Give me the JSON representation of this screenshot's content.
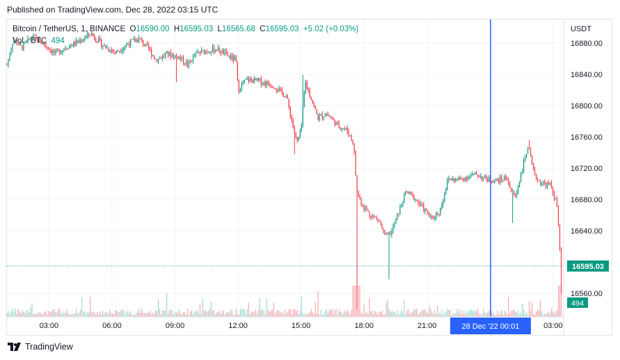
{
  "header": {
    "published": "Published on TradingView.com, Dec 28, 2022 03:15 UTC"
  },
  "legend": {
    "symbol": "Bitcoin / TetherUS, 1, BINANCE",
    "open_label": "O",
    "open": "16590.00",
    "high_label": "H",
    "high": "16595.03",
    "low_label": "L",
    "low": "16565.68",
    "close_label": "C",
    "close": "16595.03",
    "change": "+5.02 (+0.03%)",
    "vol_label": "Vol · BTC",
    "vol_value": "494"
  },
  "footer": {
    "brand": "TradingView",
    "logo_icon": "tradingview-logo-icon"
  },
  "colors": {
    "up": "#089981",
    "down": "#f23645",
    "vol_up": "#9fd8cf",
    "vol_down": "#f7a7ae",
    "crosshair": "#2962ff",
    "price_label": "#089981",
    "grid": "#f0f3fa"
  },
  "chart_data": {
    "type": "candlestick",
    "currency": "USDT",
    "y_ticks": [
      "16880.00",
      "16840.00",
      "16800.00",
      "16760.00",
      "16720.00",
      "16680.00",
      "16640.00",
      "16560.00"
    ],
    "y_tick_values": [
      16880,
      16840,
      16800,
      16760,
      16720,
      16680,
      16640,
      16560
    ],
    "x_ticks": [
      "03:00",
      "06:00",
      "09:00",
      "12:00",
      "15:00",
      "18:00",
      "21:00",
      "03:00"
    ],
    "x_tick_hours": [
      3,
      6,
      9,
      12,
      15,
      18,
      21,
      27
    ],
    "ylim": [
      16530,
      16910
    ],
    "xlim_hours": [
      1.0,
      27.5
    ],
    "last_price": "16595.03",
    "last_price_value": 16595.03,
    "last_volume": "494",
    "crosshair_label": "28 Dec '22   00:01",
    "crosshair_hour": 24.02,
    "price_path": [
      [
        1.0,
        16852
      ],
      [
        1.3,
        16885
      ],
      [
        1.7,
        16874
      ],
      [
        2.2,
        16888
      ],
      [
        2.8,
        16878
      ],
      [
        3.3,
        16866
      ],
      [
        3.8,
        16875
      ],
      [
        4.3,
        16880
      ],
      [
        5.0,
        16892
      ],
      [
        5.6,
        16876
      ],
      [
        6.2,
        16868
      ],
      [
        6.8,
        16880
      ],
      [
        7.3,
        16885
      ],
      [
        7.8,
        16870
      ],
      [
        8.1,
        16858
      ],
      [
        8.6,
        16866
      ],
      [
        9.2,
        16862
      ],
      [
        9.6,
        16852
      ],
      [
        10.0,
        16866
      ],
      [
        10.5,
        16870
      ],
      [
        11.0,
        16872
      ],
      [
        11.5,
        16864
      ],
      [
        11.9,
        16858
      ],
      [
        12.0,
        16820
      ],
      [
        12.4,
        16833
      ],
      [
        13.0,
        16831
      ],
      [
        13.7,
        16826
      ],
      [
        14.0,
        16818
      ],
      [
        14.3,
        16812
      ],
      [
        14.6,
        16776
      ],
      [
        14.8,
        16752
      ],
      [
        15.0,
        16768
      ],
      [
        15.2,
        16830
      ],
      [
        15.5,
        16808
      ],
      [
        15.8,
        16784
      ],
      [
        16.2,
        16790
      ],
      [
        16.7,
        16776
      ],
      [
        17.2,
        16768
      ],
      [
        17.5,
        16752
      ],
      [
        17.65,
        16690
      ],
      [
        17.9,
        16674
      ],
      [
        18.3,
        16660
      ],
      [
        18.7,
        16654
      ],
      [
        19.0,
        16632
      ],
      [
        19.3,
        16638
      ],
      [
        19.6,
        16660
      ],
      [
        20.0,
        16690
      ],
      [
        20.4,
        16682
      ],
      [
        20.9,
        16666
      ],
      [
        21.2,
        16655
      ],
      [
        21.6,
        16665
      ],
      [
        22.0,
        16706
      ],
      [
        22.5,
        16705
      ],
      [
        23.0,
        16710
      ],
      [
        23.4,
        16712
      ],
      [
        23.8,
        16706
      ],
      [
        24.3,
        16704
      ],
      [
        24.8,
        16708
      ],
      [
        25.0,
        16690
      ],
      [
        25.2,
        16684
      ],
      [
        25.5,
        16716
      ],
      [
        25.8,
        16748
      ],
      [
        26.1,
        16710
      ],
      [
        26.5,
        16700
      ],
      [
        26.9,
        16698
      ],
      [
        27.2,
        16670
      ],
      [
        27.35,
        16598
      ],
      [
        27.45,
        16595
      ]
    ],
    "wick_events": [
      [
        9.1,
        16830
      ],
      [
        14.7,
        16738
      ],
      [
        15.1,
        16839
      ],
      [
        17.65,
        16540
      ],
      [
        19.2,
        16578
      ],
      [
        25.1,
        16650
      ],
      [
        25.85,
        16756
      ],
      [
        27.4,
        16560
      ]
    ]
  }
}
